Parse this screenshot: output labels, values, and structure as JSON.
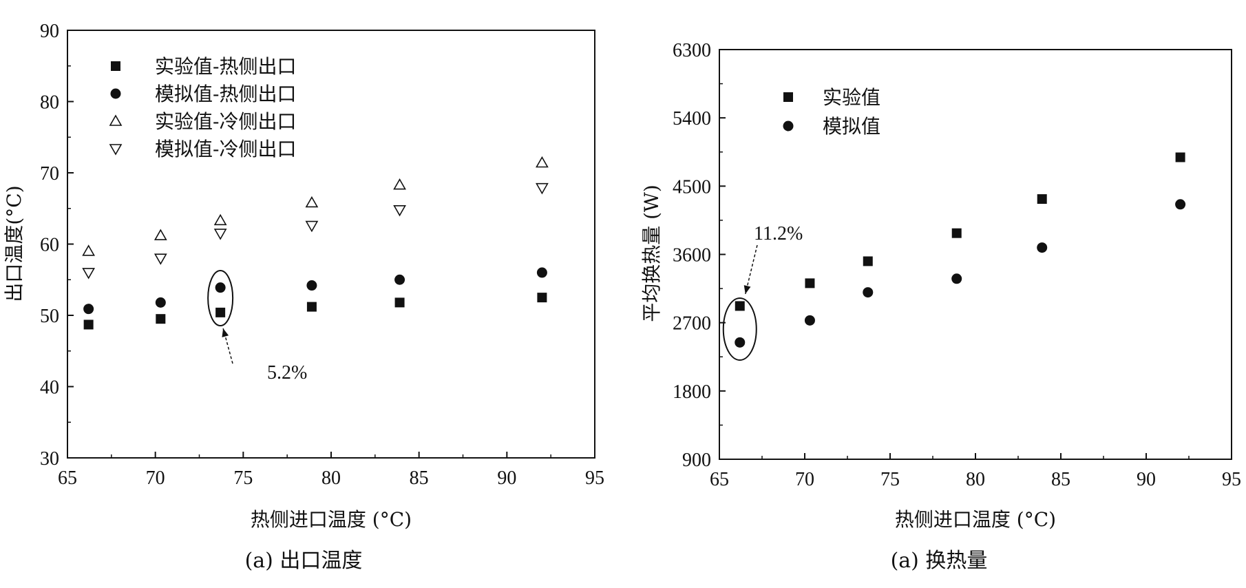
{
  "chart_data": [
    {
      "type": "scatter",
      "caption": "(a) 出口温度",
      "xlabel": "热侧进口温度 (°C)",
      "ylabel": "出口温度(°C)",
      "xlim": [
        65,
        95
      ],
      "ylim": [
        30,
        90
      ],
      "xticks": [
        65,
        70,
        75,
        80,
        85,
        90,
        95
      ],
      "yticks": [
        30,
        40,
        50,
        60,
        70,
        80,
        90
      ],
      "legend_position": "top-left",
      "series": [
        {
          "name": "实验值-热侧出口",
          "marker": "square",
          "x": [
            66.2,
            70.3,
            73.7,
            78.9,
            83.9,
            92.0
          ],
          "y": [
            48.7,
            49.5,
            50.4,
            51.2,
            51.8,
            52.5
          ]
        },
        {
          "name": "模拟值-热侧出口",
          "marker": "circle",
          "x": [
            66.2,
            70.3,
            73.7,
            78.9,
            83.9,
            92.0
          ],
          "y": [
            50.9,
            51.8,
            53.9,
            54.2,
            55.0,
            56.0
          ]
        },
        {
          "name": "实验值-冷侧出口",
          "marker": "triangle-up",
          "x": [
            66.2,
            70.3,
            73.7,
            78.9,
            83.9,
            92.0
          ],
          "y": [
            59.0,
            61.2,
            63.3,
            65.8,
            68.3,
            71.4
          ]
        },
        {
          "name": "模拟值-冷侧出口",
          "marker": "triangle-down",
          "x": [
            66.2,
            70.3,
            73.7,
            78.9,
            83.9,
            92.0
          ],
          "y": [
            56.0,
            58.0,
            61.5,
            62.6,
            64.8,
            67.9
          ]
        }
      ],
      "annotation": {
        "text": "5.2%",
        "target_x": 73.7,
        "target_y": 52.2
      }
    },
    {
      "type": "scatter",
      "caption": "(a) 换热量",
      "xlabel": "热侧进口温度 (°C)",
      "ylabel": "平均换热量 (W)",
      "xlim": [
        65,
        95
      ],
      "ylim": [
        900,
        6300
      ],
      "xticks": [
        65,
        70,
        75,
        80,
        85,
        90,
        95
      ],
      "yticks": [
        900,
        1800,
        2700,
        3600,
        4500,
        5400,
        6300
      ],
      "legend_position": "top-left",
      "series": [
        {
          "name": "实验值",
          "marker": "square",
          "x": [
            66.2,
            70.3,
            73.7,
            78.9,
            83.9,
            92.0
          ],
          "y": [
            2920,
            3220,
            3510,
            3880,
            4330,
            4880
          ]
        },
        {
          "name": "模拟值",
          "marker": "circle",
          "x": [
            66.2,
            70.3,
            73.7,
            78.9,
            83.9,
            92.0
          ],
          "y": [
            2440,
            2730,
            3100,
            3280,
            3690,
            4260
          ]
        }
      ],
      "annotation": {
        "text": "11.2%",
        "target_x": 66.2,
        "target_y": 2680
      }
    }
  ]
}
